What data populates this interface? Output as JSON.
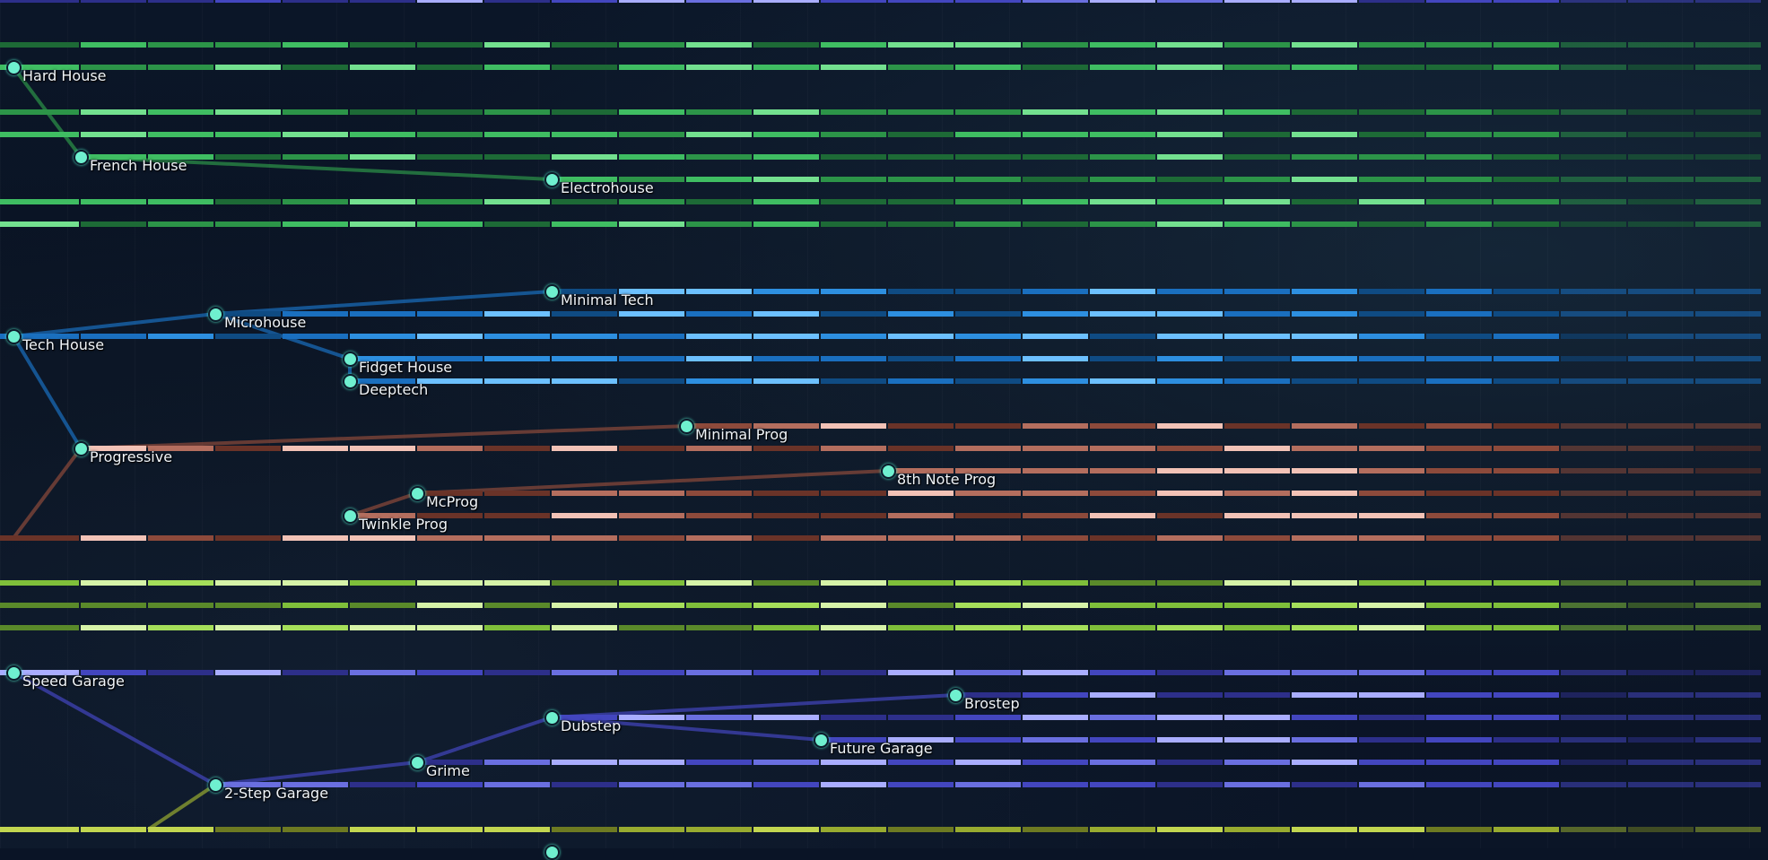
{
  "palette": {
    "green": [
      "#1d6a36",
      "#2c9448",
      "#3fbd62",
      "#73e08f"
    ],
    "blue": [
      "#0f4b83",
      "#1a6fbf",
      "#2d8fe0",
      "#6cc0ff"
    ],
    "salmon": [
      "#6a3328",
      "#8d4a3b",
      "#b46e5e",
      "#f2c2b6"
    ],
    "lime": [
      "#5a8a2a",
      "#7fbf3a",
      "#a5df5a",
      "#d6f3a8"
    ],
    "purple": [
      "#2d2f8a",
      "#4346bf",
      "#6a6fe0",
      "#a9adff"
    ],
    "yellowgreen": [
      "#6d7a22",
      "#98ab30",
      "#c2d650"
    ]
  },
  "genres": [
    {
      "id": "hard-house",
      "label": "Hard House",
      "row": 3,
      "start": 0,
      "color": "green"
    },
    {
      "id": "french-house",
      "label": "French House",
      "row": 7,
      "start": 1,
      "color": "green"
    },
    {
      "id": "electrohouse",
      "label": "Electrohouse",
      "row": 8,
      "start": 8,
      "color": "green"
    },
    {
      "id": "minimal-tech",
      "label": "Minimal Tech",
      "row": 13,
      "start": 8,
      "color": "blue"
    },
    {
      "id": "microhouse",
      "label": "Microhouse",
      "row": 14,
      "start": 3,
      "color": "blue"
    },
    {
      "id": "tech-house",
      "label": "Tech House",
      "row": 15,
      "start": 0,
      "color": "blue"
    },
    {
      "id": "fidget-house",
      "label": "Fidget House",
      "row": 16,
      "start": 5,
      "color": "blue"
    },
    {
      "id": "deeptech",
      "label": "Deeptech",
      "row": 17,
      "start": 5,
      "color": "blue"
    },
    {
      "id": "minimal-prog",
      "label": "Minimal Prog",
      "row": 19,
      "start": 10,
      "color": "salmon"
    },
    {
      "id": "progressive",
      "label": "Progressive",
      "row": 20,
      "start": 1,
      "color": "salmon"
    },
    {
      "id": "8th-note-prog",
      "label": "8th Note Prog",
      "row": 21,
      "start": 13,
      "color": "salmon"
    },
    {
      "id": "mcprog",
      "label": "McProg",
      "row": 22,
      "start": 6,
      "color": "salmon"
    },
    {
      "id": "twinkle-prog",
      "label": "Twinkle Prog",
      "row": 23,
      "start": 5,
      "color": "salmon"
    },
    {
      "id": "speed-garage",
      "label": "Speed Garage",
      "row": 30,
      "start": 0,
      "color": "purple"
    },
    {
      "id": "brostep",
      "label": "Brostep",
      "row": 31,
      "start": 14,
      "color": "purple"
    },
    {
      "id": "dubstep",
      "label": "Dubstep",
      "row": 32,
      "start": 8,
      "color": "purple"
    },
    {
      "id": "future-garage",
      "label": "Future Garage",
      "row": 33,
      "start": 12,
      "color": "purple"
    },
    {
      "id": "grime",
      "label": "Grime",
      "row": 34,
      "start": 6,
      "color": "purple"
    },
    {
      "id": "2-step-garage",
      "label": "2-Step Garage",
      "row": 35,
      "start": 3,
      "color": "purple"
    }
  ],
  "tracks": [
    {
      "row": 0,
      "start": 0,
      "end": 26,
      "color": "purple"
    },
    {
      "row": 2,
      "start": 0,
      "end": 26,
      "color": "green"
    },
    {
      "row": 3,
      "start": 0,
      "end": 26,
      "color": "green"
    },
    {
      "row": 5,
      "start": 0,
      "end": 26,
      "color": "green"
    },
    {
      "row": 6,
      "start": 0,
      "end": 26,
      "color": "green"
    },
    {
      "row": 7,
      "start": 1,
      "end": 26,
      "color": "green"
    },
    {
      "row": 8,
      "start": 8,
      "end": 26,
      "color": "green"
    },
    {
      "row": 9,
      "start": 0,
      "end": 26,
      "color": "green"
    },
    {
      "row": 10,
      "start": 0,
      "end": 26,
      "color": "green"
    },
    {
      "row": 13,
      "start": 8,
      "end": 26,
      "color": "blue"
    },
    {
      "row": 14,
      "start": 3,
      "end": 26,
      "color": "blue"
    },
    {
      "row": 15,
      "start": 0,
      "end": 26,
      "color": "blue"
    },
    {
      "row": 16,
      "start": 5,
      "end": 26,
      "color": "blue"
    },
    {
      "row": 17,
      "start": 5,
      "end": 26,
      "color": "blue"
    },
    {
      "row": 19,
      "start": 10,
      "end": 26,
      "color": "salmon"
    },
    {
      "row": 20,
      "start": 1,
      "end": 26,
      "color": "salmon"
    },
    {
      "row": 21,
      "start": 13,
      "end": 26,
      "color": "salmon"
    },
    {
      "row": 22,
      "start": 6,
      "end": 26,
      "color": "salmon"
    },
    {
      "row": 23,
      "start": 5,
      "end": 26,
      "color": "salmon"
    },
    {
      "row": 24,
      "start": 0,
      "end": 26,
      "color": "salmon"
    },
    {
      "row": 26,
      "start": 0,
      "end": 26,
      "color": "lime"
    },
    {
      "row": 27,
      "start": 0,
      "end": 26,
      "color": "lime"
    },
    {
      "row": 28,
      "start": 0,
      "end": 26,
      "color": "lime"
    },
    {
      "row": 30,
      "start": 0,
      "end": 26,
      "color": "purple"
    },
    {
      "row": 31,
      "start": 14,
      "end": 26,
      "color": "purple"
    },
    {
      "row": 32,
      "start": 8,
      "end": 26,
      "color": "purple"
    },
    {
      "row": 33,
      "start": 12,
      "end": 26,
      "color": "purple"
    },
    {
      "row": 34,
      "start": 6,
      "end": 26,
      "color": "purple"
    },
    {
      "row": 35,
      "start": 3,
      "end": 26,
      "color": "purple"
    },
    {
      "row": 37,
      "start": 0,
      "end": 26,
      "color": "yellowgreen"
    }
  ]
}
